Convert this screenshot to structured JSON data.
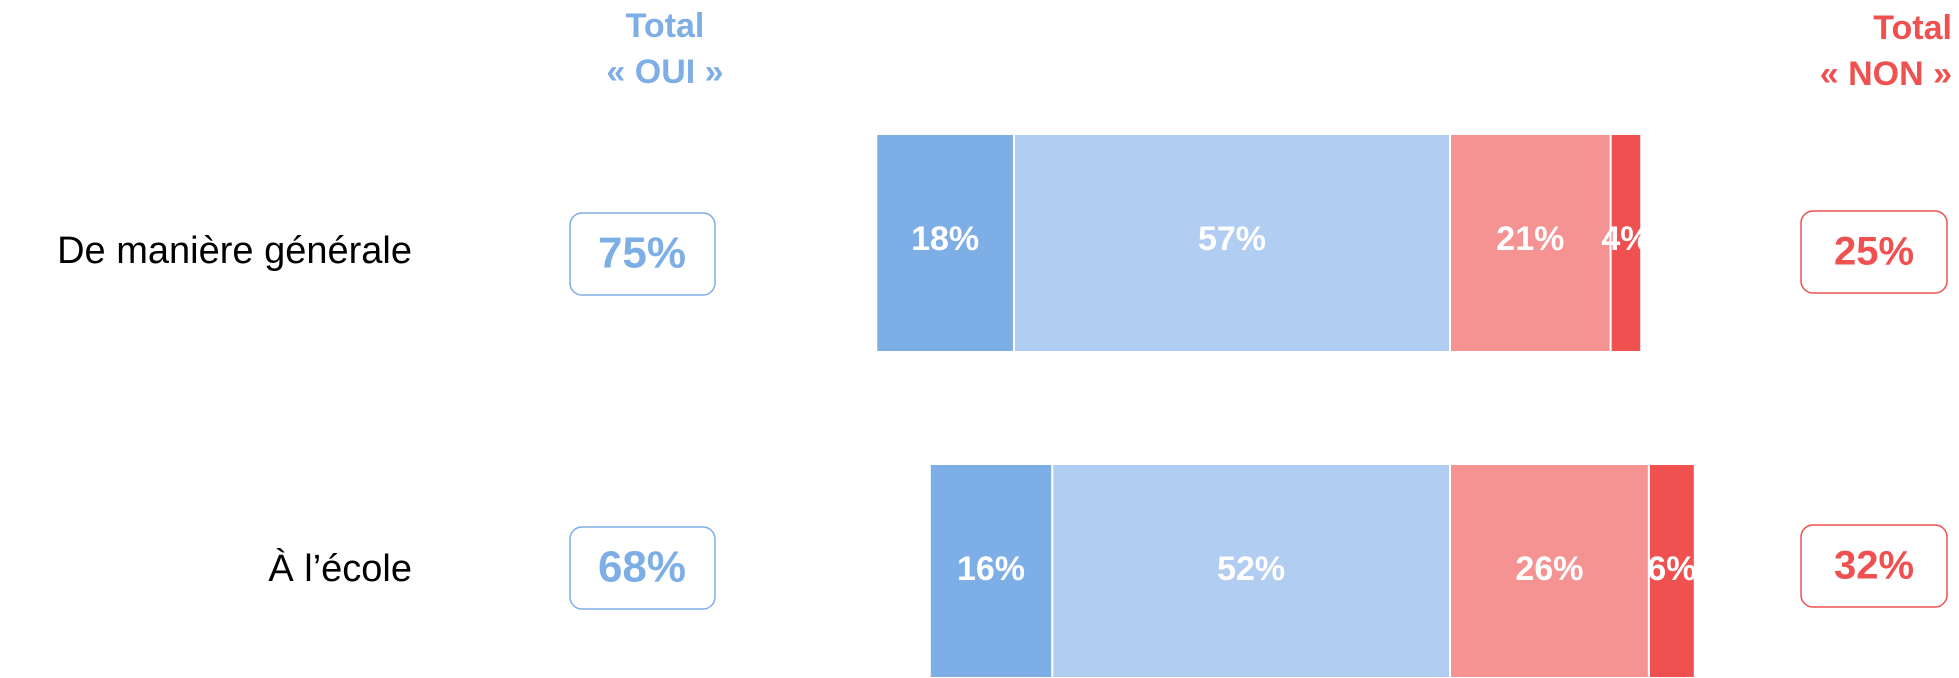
{
  "chart_data": {
    "type": "diverging_bar",
    "categories": [
      "De manière générale",
      "À l’école"
    ],
    "series": [
      {
        "color": "#7eaee6",
        "side": "left",
        "values": [
          18,
          16
        ],
        "value_labels": [
          "18%",
          "16%"
        ]
      },
      {
        "color": "#b1cdf1",
        "side": "left",
        "values": [
          57,
          52
        ],
        "value_labels": [
          "57%",
          "52%"
        ]
      },
      {
        "color": "#f59292",
        "side": "right",
        "values": [
          21,
          26
        ],
        "value_labels": [
          "21%",
          "26%"
        ]
      },
      {
        "color": "#ef5050",
        "side": "right",
        "values": [
          4,
          6
        ],
        "value_labels": [
          "4%",
          "6%"
        ]
      }
    ],
    "total_yes": {
      "label_lines": [
        "Total",
        "« OUI »"
      ],
      "color": "#7eaee6",
      "values": [
        75,
        68
      ],
      "value_labels": [
        "75%",
        "68%"
      ]
    },
    "total_no": {
      "label_lines": [
        "Total",
        "« NON »"
      ],
      "color": "#ef5050",
      "values": [
        25,
        32
      ],
      "value_labels": [
        "25%",
        "32%"
      ]
    }
  }
}
